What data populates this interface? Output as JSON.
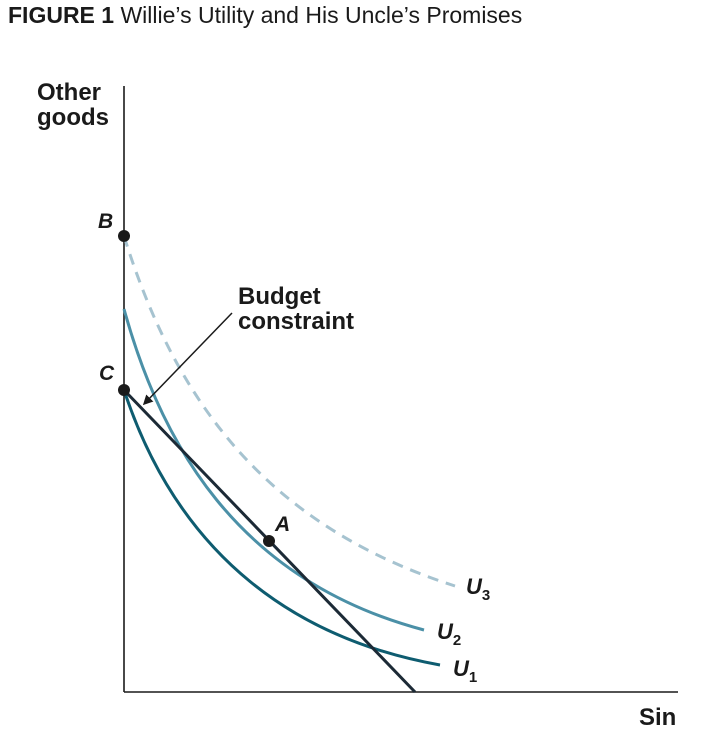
{
  "figure": {
    "number": "FIGURE 1",
    "title": "Willie’s Utility and His Uncle’s Promises"
  },
  "axes": {
    "y_label_line1": "Other",
    "y_label_line2": "goods",
    "x_label": "Sin"
  },
  "annotation": {
    "line1": "Budget",
    "line2": "constraint"
  },
  "points": {
    "a": "A",
    "b": "B",
    "c": "C"
  },
  "curves": {
    "u1": {
      "letter": "U",
      "sub": "1",
      "color": "#0e5c70",
      "style": "solid"
    },
    "u2": {
      "letter": "U",
      "sub": "2",
      "color": "#4b90a7",
      "style": "solid"
    },
    "u3": {
      "letter": "U",
      "sub": "3",
      "color": "#a6c3d0",
      "style": "dashed"
    }
  },
  "budget_line_color": "#1c2a36"
}
